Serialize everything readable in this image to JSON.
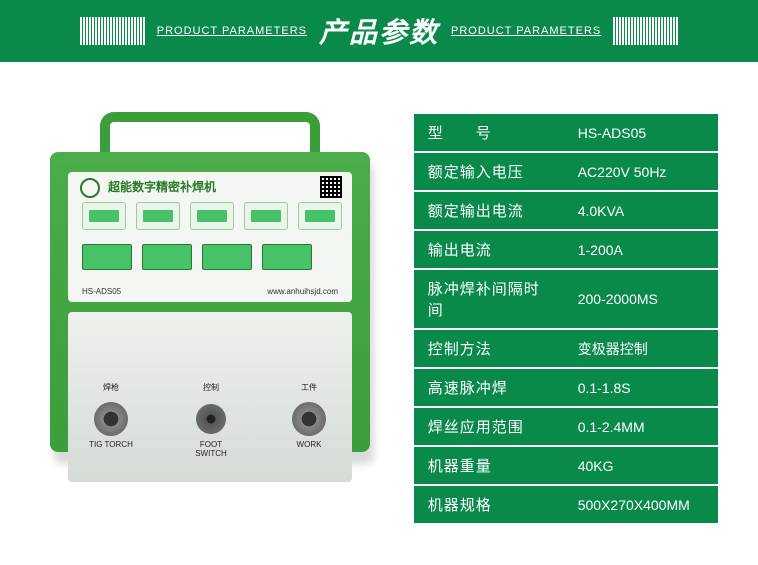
{
  "header": {
    "bg_color": "#0a8a4a",
    "title_cn": "产品参数",
    "title_en": "PRODUCT PARAMETERS",
    "line_color": "#0a8a4a",
    "barcode_bars": 22
  },
  "product": {
    "panel_title": "超能数字精密补焊机",
    "model_code": "HS-ADS05",
    "url": "www.anhuihsjd.com",
    "body_color": "#3a9e3a",
    "handle_color": "#3a9e3a",
    "connectors": {
      "left_label_cn": "焊枪",
      "left_label_en": "TIG TORCH",
      "center_label_cn": "控制",
      "center_label_en": "FOOT SWITCH",
      "right_label_cn": "工件",
      "right_label_en": "WORK"
    }
  },
  "spec_table": {
    "row_bg": "#0a8a4a",
    "text_color": "#ffffff",
    "rows": [
      {
        "label": "型　　号",
        "value": "HS-ADS05"
      },
      {
        "label": "额定输入电压",
        "value": "AC220V 50Hz"
      },
      {
        "label": "额定输出电流",
        "value": "4.0KVA"
      },
      {
        "label": "输出电流",
        "value": "1-200A"
      },
      {
        "label": "脉冲焊补间隔时间",
        "value": "200-2000MS"
      },
      {
        "label": "控制方法",
        "value": "变极器控制"
      },
      {
        "label": "高速脉冲焊",
        "value": "0.1-1.8S"
      },
      {
        "label": "焊丝应用范围",
        "value": "0.1-2.4MM"
      },
      {
        "label": "机器重量",
        "value": "40KG"
      },
      {
        "label": "机器规格",
        "value": "500X270X400MM"
      }
    ]
  }
}
